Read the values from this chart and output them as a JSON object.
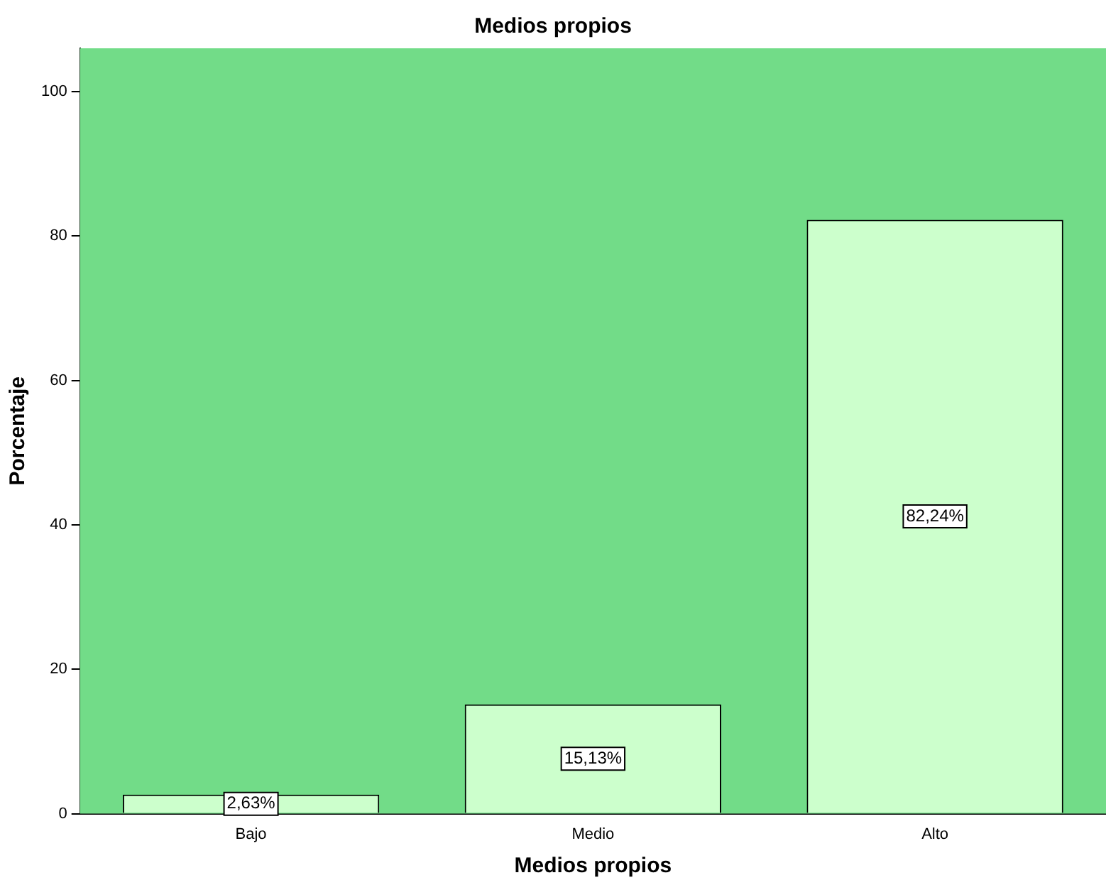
{
  "chart_data": {
    "type": "bar",
    "title": "Medios propios",
    "xlabel": "Medios propios",
    "ylabel": "Porcentaje",
    "categories": [
      "Bajo",
      "Medio",
      "Alto"
    ],
    "values": [
      2.63,
      15.13,
      82.24
    ],
    "value_labels": [
      "2,63%",
      "15,13%",
      "82,24%"
    ],
    "color": "#ccffcc",
    "ylim": [
      0,
      106
    ],
    "yticks": [
      0,
      20,
      40,
      60,
      80,
      100
    ],
    "grid": false,
    "legend": false
  }
}
